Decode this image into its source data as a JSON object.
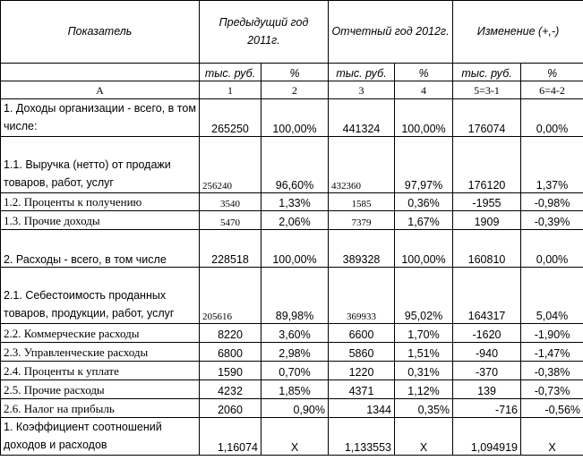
{
  "header": {
    "indicator": "Показатель",
    "prev_year": "Предыдущий год 2011г.",
    "report_year": "Отчетный год 2012г.",
    "change": "Изменение (+,-)",
    "units": [
      "тыс. руб.",
      "%",
      "тыс. руб.",
      "%",
      "тыс. руб.",
      "%"
    ],
    "col_numbers": [
      "А",
      "1",
      "2",
      "3",
      "4",
      "5=3-1",
      "6=4-2"
    ]
  },
  "rows": [
    {
      "label": "1. Доходы организации - всего, в том числе:",
      "values": [
        "265250",
        "100,00%",
        "441324",
        "100,00%",
        "176074",
        "0,00%"
      ]
    },
    {
      "label": "1.1. Выручка (нетто) от продажи товаров, работ, услуг",
      "values": [
        "256240",
        "96,60%",
        "432360",
        "97,97%",
        "176120",
        "1,37%"
      ]
    },
    {
      "label": "1.2. Проценты к получению",
      "values": [
        "3540",
        "1,33%",
        "1585",
        "0,36%",
        "-1955",
        "-0,98%"
      ]
    },
    {
      "label": "1.3. Прочие доходы",
      "values": [
        "5470",
        "2,06%",
        "7379",
        "1,67%",
        "1909",
        "-0,39%"
      ]
    },
    {
      "label": "2. Расходы - всего, в том числе",
      "values": [
        "228518",
        "100,00%",
        "389328",
        "100,00%",
        "160810",
        "0,00%"
      ]
    },
    {
      "label": "2.1. Себестоимость проданных товаров, продукции, работ, услуг",
      "values": [
        "205616",
        "89,98%",
        "369933",
        "95,02%",
        "164317",
        "5,04%"
      ]
    },
    {
      "label": "2.2. Коммерческие расходы",
      "values": [
        "8220",
        "3,60%",
        "6600",
        "1,70%",
        "-1620",
        "-1,90%"
      ]
    },
    {
      "label": "2.3. Управленческие расходы",
      "values": [
        "6800",
        "2,98%",
        "5860",
        "1,51%",
        "-940",
        "-1,47%"
      ]
    },
    {
      "label": "2.4. Проценты к уплате",
      "values": [
        "1590",
        "0,70%",
        "1220",
        "0,31%",
        "-370",
        "-0,38%"
      ]
    },
    {
      "label": "2.5. Прочие расходы",
      "values": [
        "4232",
        "1,85%",
        "4371",
        "1,12%",
        "139",
        "-0,73%"
      ]
    },
    {
      "label": "2.6. Налог на прибыль",
      "values": [
        "2060",
        "0,90%",
        "1344",
        "0,35%",
        "-716",
        "-0,56%"
      ]
    },
    {
      "label": "1. Коэффициент соотношений доходов и расходов",
      "values": [
        "1,16074",
        "X",
        "1,133553",
        "X",
        "1,094919",
        "X"
      ]
    }
  ]
}
